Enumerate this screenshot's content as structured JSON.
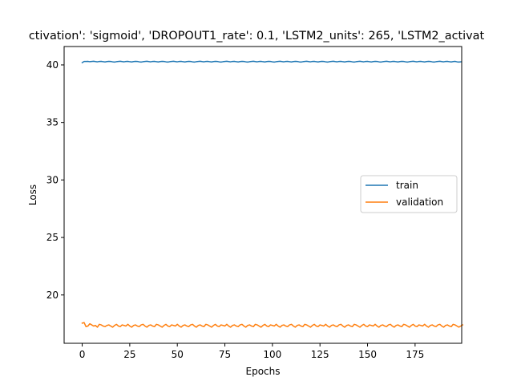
{
  "chart_data": {
    "type": "line",
    "title": "ctivation': 'sigmoid', 'DROPOUT1_rate': 0.1, 'LSTM2_units': 265, 'LSTM2_activat",
    "xlabel": "Epochs",
    "ylabel": "Loss",
    "xlim": [
      -9.5,
      199.5
    ],
    "ylim": [
      15.8,
      41.6
    ],
    "xticks": [
      0,
      25,
      50,
      75,
      100,
      125,
      150,
      175
    ],
    "xtick_labels": [
      "0",
      "25",
      "50",
      "75",
      "100",
      "125",
      "150",
      "175"
    ],
    "yticks": [
      20,
      25,
      30,
      35,
      40
    ],
    "ytick_labels": [
      "20",
      "25",
      "30",
      "35",
      "40"
    ],
    "grid": false,
    "legend_position": "center-right",
    "series": [
      {
        "name": "train",
        "color": "#1f77b4",
        "x_start": 0,
        "values": [
          40.2,
          40.3,
          40.3,
          40.31,
          40.28,
          40.3,
          40.32,
          40.29,
          40.27,
          40.3,
          40.31,
          40.28,
          40.26,
          40.29,
          40.31,
          40.3,
          40.27,
          40.25,
          40.28,
          40.3,
          40.32,
          40.29,
          40.27,
          40.3,
          40.31,
          40.28,
          40.26,
          40.29,
          40.31,
          40.3,
          40.27,
          40.25,
          40.28,
          40.3,
          40.32,
          40.29,
          40.27,
          40.3,
          40.31,
          40.28,
          40.26,
          40.29,
          40.31,
          40.3,
          40.27,
          40.25,
          40.28,
          40.3,
          40.32,
          40.29,
          40.27,
          40.3,
          40.31,
          40.28,
          40.26,
          40.29,
          40.31,
          40.3,
          40.27,
          40.25,
          40.28,
          40.3,
          40.32,
          40.29,
          40.27,
          40.3,
          40.31,
          40.28,
          40.26,
          40.29,
          40.31,
          40.3,
          40.27,
          40.25,
          40.28,
          40.3,
          40.32,
          40.29,
          40.27,
          40.3,
          40.31,
          40.28,
          40.26,
          40.29,
          40.31,
          40.3,
          40.27,
          40.25,
          40.28,
          40.3,
          40.32,
          40.29,
          40.27,
          40.3,
          40.31,
          40.28,
          40.26,
          40.29,
          40.31,
          40.3,
          40.27,
          40.25,
          40.28,
          40.3,
          40.32,
          40.29,
          40.27,
          40.3,
          40.31,
          40.28,
          40.26,
          40.29,
          40.31,
          40.3,
          40.27,
          40.25,
          40.28,
          40.3,
          40.32,
          40.29,
          40.27,
          40.3,
          40.31,
          40.28,
          40.26,
          40.29,
          40.31,
          40.3,
          40.27,
          40.25,
          40.28,
          40.3,
          40.32,
          40.29,
          40.27,
          40.3,
          40.31,
          40.28,
          40.26,
          40.29,
          40.31,
          40.3,
          40.27,
          40.25,
          40.28,
          40.3,
          40.32,
          40.29,
          40.27,
          40.3,
          40.31,
          40.28,
          40.26,
          40.29,
          40.31,
          40.3,
          40.27,
          40.25,
          40.28,
          40.3,
          40.32,
          40.29,
          40.27,
          40.3,
          40.31,
          40.28,
          40.26,
          40.29,
          40.31,
          40.3,
          40.27,
          40.25,
          40.28,
          40.3,
          40.32,
          40.29,
          40.27,
          40.3,
          40.31,
          40.28,
          40.26,
          40.29,
          40.31,
          40.3,
          40.27,
          40.25,
          40.28,
          40.3,
          40.32,
          40.29,
          40.27,
          40.3,
          40.31,
          40.28,
          40.26,
          40.29,
          40.31,
          40.27,
          40.25,
          40.27
        ]
      },
      {
        "name": "validation",
        "color": "#ff7f0e",
        "x_start": 0,
        "values": [
          17.55,
          17.6,
          17.25,
          17.3,
          17.5,
          17.4,
          17.3,
          17.35,
          17.2,
          17.45,
          17.4,
          17.3,
          17.25,
          17.35,
          17.4,
          17.3,
          17.2,
          17.35,
          17.45,
          17.3,
          17.25,
          17.4,
          17.35,
          17.3,
          17.45,
          17.3,
          17.2,
          17.35,
          17.4,
          17.3,
          17.25,
          17.4,
          17.45,
          17.3,
          17.2,
          17.35,
          17.4,
          17.3,
          17.25,
          17.45,
          17.4,
          17.3,
          17.2,
          17.35,
          17.45,
          17.3,
          17.25,
          17.4,
          17.35,
          17.3,
          17.45,
          17.3,
          17.2,
          17.35,
          17.4,
          17.3,
          17.25,
          17.4,
          17.45,
          17.3,
          17.2,
          17.35,
          17.4,
          17.3,
          17.25,
          17.45,
          17.4,
          17.3,
          17.2,
          17.35,
          17.45,
          17.3,
          17.25,
          17.4,
          17.35,
          17.3,
          17.45,
          17.3,
          17.2,
          17.35,
          17.4,
          17.3,
          17.25,
          17.4,
          17.45,
          17.3,
          17.2,
          17.35,
          17.4,
          17.3,
          17.25,
          17.45,
          17.4,
          17.3,
          17.2,
          17.35,
          17.45,
          17.3,
          17.25,
          17.4,
          17.35,
          17.3,
          17.45,
          17.3,
          17.2,
          17.35,
          17.4,
          17.3,
          17.25,
          17.4,
          17.45,
          17.3,
          17.2,
          17.35,
          17.4,
          17.3,
          17.25,
          17.45,
          17.4,
          17.3,
          17.2,
          17.35,
          17.45,
          17.3,
          17.25,
          17.4,
          17.35,
          17.3,
          17.45,
          17.3,
          17.2,
          17.35,
          17.4,
          17.3,
          17.25,
          17.4,
          17.45,
          17.3,
          17.2,
          17.35,
          17.4,
          17.3,
          17.25,
          17.45,
          17.4,
          17.3,
          17.2,
          17.35,
          17.45,
          17.3,
          17.25,
          17.4,
          17.35,
          17.3,
          17.45,
          17.3,
          17.2,
          17.35,
          17.4,
          17.3,
          17.25,
          17.4,
          17.45,
          17.3,
          17.2,
          17.35,
          17.4,
          17.3,
          17.25,
          17.45,
          17.4,
          17.3,
          17.2,
          17.35,
          17.45,
          17.3,
          17.25,
          17.4,
          17.35,
          17.3,
          17.45,
          17.3,
          17.2,
          17.35,
          17.4,
          17.3,
          17.25,
          17.4,
          17.45,
          17.3,
          17.2,
          17.35,
          17.4,
          17.3,
          17.25,
          17.45,
          17.4,
          17.3,
          17.2,
          17.3,
          17.4
        ]
      }
    ]
  }
}
